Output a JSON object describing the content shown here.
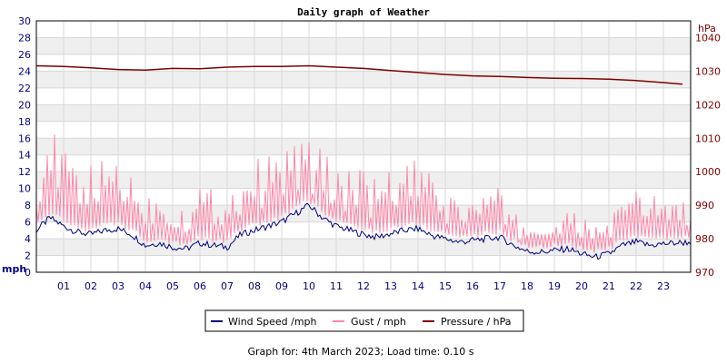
{
  "chart_data": {
    "type": "line",
    "title": "Daily graph of Weather",
    "x_ticks": [
      "01",
      "02",
      "03",
      "04",
      "05",
      "06",
      "07",
      "08",
      "09",
      "10",
      "11",
      "12",
      "13",
      "14",
      "15",
      "16",
      "17",
      "18",
      "19",
      "20",
      "21",
      "22",
      "23"
    ],
    "y_left": {
      "unit": "mph",
      "min": 0,
      "max": 30,
      "ticks": [
        0,
        2,
        4,
        6,
        8,
        10,
        12,
        14,
        16,
        18,
        20,
        22,
        24,
        26,
        28,
        30
      ]
    },
    "y_right": {
      "unit": "hPa",
      "min": 970,
      "max": 1045,
      "ticks": [
        970,
        980,
        990,
        1000,
        1010,
        1020,
        1030,
        1040
      ]
    },
    "x_range_hours": [
      0,
      24
    ],
    "series": [
      {
        "name": "Wind Speed /mph",
        "color": "#000080",
        "axis": "left",
        "x": [
          0,
          0.5,
          1,
          1.5,
          2,
          2.5,
          3,
          3.5,
          4,
          4.5,
          5,
          5.5,
          6,
          6.5,
          7,
          7.5,
          8,
          8.5,
          9,
          9.5,
          10,
          10.5,
          11,
          11.5,
          12,
          12.5,
          13,
          13.5,
          14,
          14.5,
          15,
          15.5,
          16,
          16.5,
          17,
          17.5,
          18,
          18.5,
          19,
          19.5,
          20,
          20.5,
          21,
          21.5,
          22,
          22.5,
          23,
          23.5,
          24
        ],
        "values": [
          5,
          6.5,
          5.5,
          4.8,
          4.5,
          5,
          5.2,
          4.5,
          3.2,
          3.5,
          3,
          2.8,
          3.5,
          3.2,
          3,
          4.5,
          5,
          5.5,
          6,
          7,
          8,
          6.5,
          5.5,
          5,
          4.5,
          4.2,
          4.6,
          5,
          5.2,
          4.4,
          4,
          3.6,
          3.8,
          4,
          4.2,
          3.2,
          2.5,
          2.4,
          2.6,
          2.8,
          2.2,
          1.8,
          2.2,
          3.2,
          3.6,
          3.2,
          3.4,
          3.5,
          3.6
        ]
      },
      {
        "name": "Gust / mph",
        "color": "#ff88aa",
        "axis": "left",
        "x": [
          0,
          0.5,
          1,
          1.5,
          2,
          2.5,
          3,
          3.5,
          4,
          4.5,
          5,
          5.5,
          6,
          6.5,
          7,
          7.5,
          8,
          8.5,
          9,
          9.5,
          10,
          10.5,
          11,
          11.5,
          12,
          12.5,
          13,
          13.5,
          14,
          14.5,
          15,
          15.5,
          16,
          16.5,
          17,
          17.5,
          18,
          18.5,
          19,
          19.5,
          20,
          20.5,
          21,
          21.5,
          22,
          22.5,
          23,
          23.5,
          24
        ],
        "values": [
          10,
          13,
          11,
          10,
          9.5,
          10,
          11,
          9,
          7,
          7.5,
          6.5,
          6,
          8,
          7.5,
          7,
          9,
          10,
          10.5,
          11,
          12.5,
          12,
          11,
          10,
          9.5,
          9,
          8.5,
          9,
          10,
          10,
          8.5,
          7.5,
          6.5,
          7,
          7.5,
          7.5,
          5.5,
          4.5,
          4.5,
          5,
          5.5,
          5,
          4.5,
          5,
          6.5,
          7.5,
          7,
          7.5,
          6.5,
          6.5
        ]
      },
      {
        "name": "Pressure / hPa",
        "color": "#800000",
        "axis": "right",
        "x": [
          0,
          1,
          2,
          3,
          4,
          5,
          6,
          7,
          8,
          9,
          10,
          11,
          12,
          13,
          14,
          15,
          16,
          17,
          18,
          19,
          20,
          21,
          22,
          23,
          23.7
        ],
        "values": [
          1031.6,
          1031.4,
          1031.0,
          1030.5,
          1030.3,
          1030.8,
          1030.7,
          1031.2,
          1031.4,
          1031.4,
          1031.6,
          1031.2,
          1030.8,
          1030.2,
          1029.6,
          1029.0,
          1028.6,
          1028.4,
          1028.1,
          1027.9,
          1027.8,
          1027.6,
          1027.2,
          1026.6,
          1026.1
        ]
      }
    ],
    "legend_position": "bottom",
    "grid": true
  },
  "footer_text": "Graph for: 4th March 2023; Load time: 0.10 s"
}
